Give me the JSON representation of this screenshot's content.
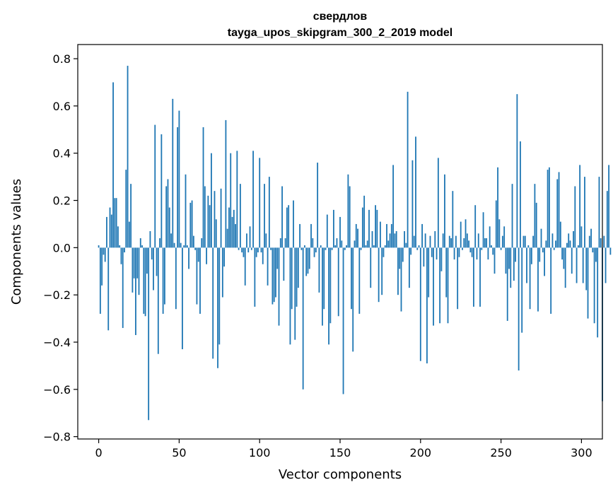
{
  "chart_data": {
    "type": "bar",
    "title": "свердлов",
    "subtitle": "tayga_upos_skipgram_300_2_2019 model",
    "xlabel": "Vector components",
    "ylabel": "Components values",
    "xlim": [
      -13,
      313
    ],
    "ylim": [
      -0.81,
      0.86
    ],
    "xticks": [
      0,
      50,
      100,
      150,
      200,
      250,
      300
    ],
    "yticks": [
      -0.8,
      -0.6,
      -0.4,
      -0.2,
      0.0,
      0.2,
      0.4,
      0.6,
      0.8
    ],
    "ytick_labels": [
      "−0.8",
      "−0.6",
      "−0.4",
      "−0.2",
      "0.0",
      "0.2",
      "0.4",
      "0.6",
      "0.8"
    ],
    "grid": false,
    "color": "#1f77b4",
    "values": [
      0.01,
      -0.28,
      -0.16,
      -0.03,
      -0.06,
      0.13,
      -0.35,
      0.17,
      0.14,
      0.7,
      0.21,
      0.21,
      0.09,
      0.01,
      -0.07,
      -0.34,
      -0.02,
      0.33,
      0.77,
      0.11,
      0.27,
      -0.19,
      -0.13,
      -0.37,
      -0.13,
      -0.2,
      0.04,
      0.01,
      -0.28,
      -0.29,
      -0.11,
      -0.73,
      0.07,
      -0.05,
      -0.18,
      0.52,
      -0.12,
      -0.45,
      0.04,
      0.48,
      -0.28,
      -0.24,
      0.26,
      0.29,
      0.17,
      0.06,
      0.63,
      0.02,
      -0.26,
      0.51,
      0.58,
      0.02,
      -0.43,
      0.01,
      0.31,
      0.01,
      -0.09,
      0.19,
      0.2,
      0.05,
      -0.01,
      -0.24,
      -0.06,
      -0.28,
      0.04,
      0.51,
      0.26,
      -0.07,
      0.22,
      0.18,
      0.4,
      -0.47,
      0.24,
      0.12,
      -0.51,
      -0.41,
      0.25,
      -0.21,
      -0.08,
      0.54,
      0.08,
      0.17,
      0.4,
      0.13,
      0.16,
      0.1,
      0.41,
      -0.01,
      0.27,
      -0.02,
      -0.04,
      -0.16,
      0.06,
      -0.02,
      0.09,
      -0.01,
      0.41,
      -0.25,
      -0.04,
      -0.02,
      0.38,
      -0.02,
      -0.07,
      0.27,
      0.06,
      -0.16,
      0.3,
      -0.01,
      -0.24,
      -0.23,
      -0.21,
      -0.09,
      -0.33,
      0.04,
      0.26,
      -0.14,
      0.04,
      0.17,
      0.18,
      -0.41,
      -0.26,
      0.2,
      -0.39,
      -0.25,
      -0.17,
      0.1,
      -0.01,
      -0.6,
      0.01,
      -0.12,
      -0.11,
      -0.09,
      0.1,
      0.04,
      -0.04,
      -0.02,
      0.36,
      -0.19,
      0.01,
      -0.33,
      -0.26,
      -0.01,
      0.14,
      -0.41,
      -0.32,
      -0.01,
      0.16,
      0.01,
      0.04,
      -0.29,
      0.13,
      0.03,
      -0.62,
      -0.01,
      0.01,
      0.31,
      0.26,
      -0.26,
      -0.44,
      0.03,
      0.1,
      0.08,
      -0.28,
      -0.01,
      0.17,
      0.22,
      0.01,
      0.03,
      0.16,
      -0.17,
      0.07,
      0.01,
      0.18,
      0.16,
      -0.23,
      0.11,
      -0.2,
      -0.04,
      0.01,
      0.1,
      0.03,
      0.06,
      0.1,
      0.35,
      0.06,
      0.07,
      -0.2,
      -0.09,
      -0.27,
      -0.06,
      0.07,
      0.02,
      0.66,
      -0.17,
      -0.03,
      0.37,
      0.05,
      0.47,
      -0.01,
      0.01,
      -0.48,
      0.1,
      -0.08,
      0.06,
      -0.49,
      -0.21,
      0.05,
      -0.04,
      -0.33,
      0.07,
      -0.05,
      0.38,
      -0.32,
      -0.1,
      0.06,
      0.31,
      -0.21,
      -0.32,
      0.05,
      0.04,
      0.24,
      -0.05,
      0.05,
      -0.26,
      -0.04,
      0.11,
      -0.01,
      0.04,
      0.12,
      0.06,
      0.03,
      -0.02,
      -0.04,
      -0.25,
      0.18,
      -0.05,
      0.06,
      -0.25,
      -0.01,
      0.15,
      0.04,
      0.04,
      -0.05,
      0.09,
      0.01,
      -0.03,
      -0.11,
      0.2,
      0.34,
      0.12,
      -0.01,
      0.05,
      0.09,
      -0.11,
      -0.31,
      -0.09,
      -0.17,
      0.27,
      -0.14,
      -0.06,
      0.65,
      -0.52,
      0.45,
      -0.36,
      0.05,
      0.05,
      -0.15,
      0.01,
      -0.26,
      -0.07,
      0.05,
      0.27,
      0.19,
      -0.27,
      -0.06,
      0.08,
      -0.02,
      -0.12,
      0.03,
      0.33,
      0.34,
      -0.28,
      0.06,
      -0.01,
      0.03,
      0.29,
      0.32,
      0.11,
      -0.05,
      -0.09,
      -0.17,
      0.02,
      0.06,
      0.03,
      -0.11,
      0.07,
      0.26,
      -0.15,
      0.01,
      0.35,
      0.09,
      -0.15,
      0.3,
      -0.18,
      -0.3,
      0.05,
      0.08,
      -0.02,
      -0.32,
      -0.06,
      -0.38,
      0.3,
      0.04,
      -0.65,
      0.05,
      -0.15,
      0.24,
      0.35,
      -0.03
    ]
  }
}
